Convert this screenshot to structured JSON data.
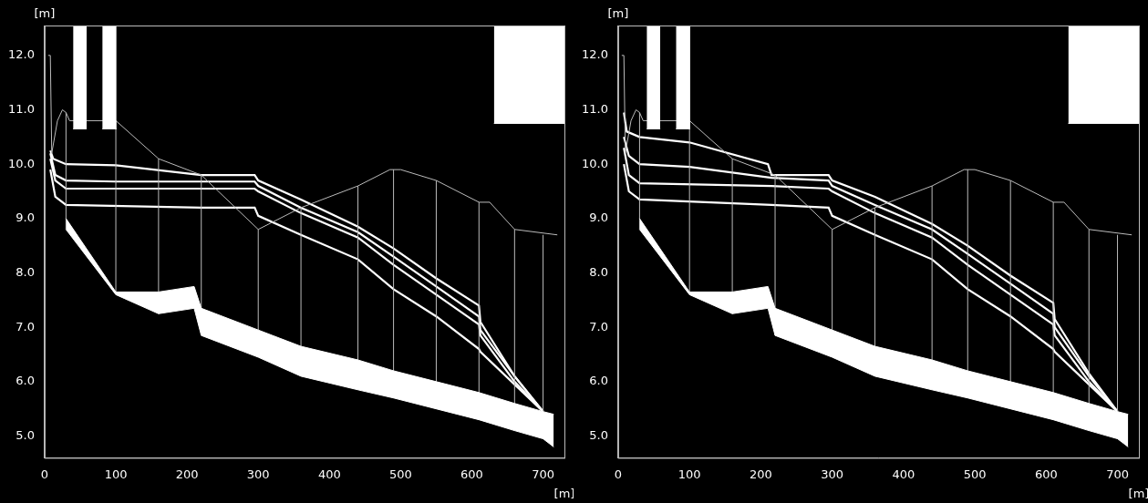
{
  "chart_data": [
    {
      "type": "line",
      "x_label": "[m]",
      "y_label": "[m]",
      "xlim": [
        0,
        730
      ],
      "ylim": [
        4.6,
        12.55
      ],
      "xticks": [
        0,
        100,
        200,
        300,
        400,
        500,
        600,
        700
      ],
      "yticks": [
        {
          "value": 5,
          "label": "5.0"
        },
        {
          "value": 6,
          "label": "6.0"
        },
        {
          "value": 7,
          "label": "7.0"
        },
        {
          "value": 8,
          "label": "8.0"
        },
        {
          "value": 9,
          "label": "9.0"
        },
        {
          "value": 10,
          "label": "10.0"
        },
        {
          "value": 11,
          "label": "11.0"
        },
        {
          "value": 12,
          "label": "12.0"
        }
      ],
      "grid": false,
      "series": [
        {
          "type": "band",
          "color": "#ffffff",
          "x": [
            30,
            100,
            160,
            210,
            220,
            300,
            360,
            440,
            490,
            550,
            610,
            660,
            700,
            715
          ],
          "values": [
            9.0,
            7.65,
            7.65,
            7.75,
            7.35,
            6.95,
            6.65,
            6.4,
            6.2,
            6.0,
            5.8,
            5.6,
            5.45,
            5.4
          ],
          "lower": [
            8.8,
            7.6,
            7.25,
            7.35,
            6.85,
            6.45,
            6.1,
            5.85,
            5.7,
            5.5,
            5.3,
            5.1,
            4.95,
            4.8
          ]
        },
        {
          "type": "band",
          "color": "#ffffff",
          "x": [
            40,
            59
          ],
          "values": [
            12.55,
            12.55
          ],
          "lower": [
            10.65,
            10.65
          ]
        },
        {
          "type": "band",
          "color": "#ffffff",
          "x": [
            81,
            101
          ],
          "values": [
            12.55,
            12.55
          ],
          "lower": [
            10.65,
            10.65
          ]
        },
        {
          "type": "band",
          "color": "#ffffff",
          "x": [
            631,
            730
          ],
          "values": [
            12.55,
            12.55
          ],
          "lower": [
            10.75,
            10.75
          ]
        },
        {
          "type": "line",
          "line_style": "thin",
          "color": "#bbbbbb",
          "x": [
            5,
            8,
            10,
            18,
            25,
            30,
            35,
            100,
            160,
            220,
            300,
            360,
            440,
            485,
            500,
            550,
            610,
            625,
            660,
            720
          ],
          "values": [
            12.0,
            12.0,
            10.2,
            10.8,
            11.0,
            10.95,
            10.8,
            10.8,
            10.1,
            9.8,
            8.8,
            9.2,
            9.6,
            9.9,
            9.9,
            9.7,
            9.3,
            9.3,
            8.8,
            8.7
          ]
        },
        {
          "type": "vline",
          "color": "#bbbbbb",
          "x": [
            30,
            100,
            160,
            220,
            300,
            360,
            440,
            490,
            550,
            610,
            660,
            700
          ],
          "values": [
            10.95,
            10.8,
            10.1,
            9.8,
            8.8,
            9.2,
            9.6,
            9.9,
            9.7,
            9.3,
            8.8,
            8.7
          ],
          "lower": [
            8.8,
            7.6,
            7.25,
            6.85,
            6.45,
            6.1,
            5.85,
            5.7,
            5.5,
            5.3,
            5.1,
            4.95
          ]
        },
        {
          "type": "line",
          "line_style": "thick",
          "color": "#ffffff",
          "x": [
            8,
            12,
            30,
            100,
            220,
            295,
            300,
            360,
            440,
            490,
            550,
            610,
            612,
            660,
            700
          ],
          "values": [
            10.25,
            10.1,
            10.0,
            9.98,
            9.8,
            9.8,
            9.7,
            9.35,
            8.85,
            8.45,
            7.9,
            7.4,
            7.1,
            6.1,
            5.45
          ]
        },
        {
          "type": "line",
          "line_style": "thick",
          "color": "#ffffff",
          "x": [
            8,
            15,
            30,
            100,
            220,
            295,
            300,
            360,
            440,
            490,
            550,
            610,
            612,
            660,
            700
          ],
          "values": [
            10.2,
            9.8,
            9.7,
            9.68,
            9.68,
            9.68,
            9.6,
            9.2,
            8.75,
            8.3,
            7.75,
            7.2,
            6.95,
            6.1,
            5.45
          ]
        },
        {
          "type": "line",
          "line_style": "thick",
          "color": "#ffffff",
          "x": [
            8,
            15,
            30,
            220,
            295,
            300,
            360,
            440,
            490,
            550,
            610,
            612,
            660,
            700
          ],
          "values": [
            10.1,
            9.7,
            9.55,
            9.55,
            9.55,
            9.5,
            9.1,
            8.65,
            8.15,
            7.6,
            7.05,
            6.85,
            6.0,
            5.45
          ]
        },
        {
          "type": "line",
          "line_style": "thick",
          "color": "#ffffff",
          "x": [
            8,
            15,
            30,
            220,
            295,
            300,
            360,
            440,
            490,
            550,
            610,
            612,
            660,
            700
          ],
          "values": [
            9.9,
            9.4,
            9.25,
            9.2,
            9.2,
            9.05,
            8.7,
            8.25,
            7.7,
            7.2,
            6.6,
            6.55,
            5.95,
            5.45
          ]
        }
      ]
    },
    {
      "type": "line",
      "x_label": "[m]",
      "y_label": "[m]",
      "xlim": [
        0,
        730
      ],
      "ylim": [
        4.6,
        12.55
      ],
      "xticks": [
        0,
        100,
        200,
        300,
        400,
        500,
        600,
        700
      ],
      "yticks": [
        {
          "value": 5,
          "label": "5.0"
        },
        {
          "value": 6,
          "label": "6.0"
        },
        {
          "value": 7,
          "label": "7.0"
        },
        {
          "value": 8,
          "label": "8.0"
        },
        {
          "value": 9,
          "label": "9.0"
        },
        {
          "value": 10,
          "label": "10.0"
        },
        {
          "value": 11,
          "label": "11.0"
        },
        {
          "value": 12,
          "label": "12.0"
        }
      ],
      "grid": false,
      "series": [
        {
          "type": "band",
          "color": "#ffffff",
          "x": [
            30,
            100,
            160,
            210,
            220,
            300,
            360,
            440,
            490,
            550,
            610,
            660,
            700,
            715
          ],
          "values": [
            9.0,
            7.65,
            7.65,
            7.75,
            7.35,
            6.95,
            6.65,
            6.4,
            6.2,
            6.0,
            5.8,
            5.6,
            5.45,
            5.4
          ],
          "lower": [
            8.8,
            7.6,
            7.25,
            7.35,
            6.85,
            6.45,
            6.1,
            5.85,
            5.7,
            5.5,
            5.3,
            5.1,
            4.95,
            4.8
          ]
        },
        {
          "type": "band",
          "color": "#ffffff",
          "x": [
            40,
            59
          ],
          "values": [
            12.55,
            12.55
          ],
          "lower": [
            10.65,
            10.65
          ]
        },
        {
          "type": "band",
          "color": "#ffffff",
          "x": [
            81,
            101
          ],
          "values": [
            12.55,
            12.55
          ],
          "lower": [
            10.65,
            10.65
          ]
        },
        {
          "type": "band",
          "color": "#ffffff",
          "x": [
            631,
            730
          ],
          "values": [
            12.55,
            12.55
          ],
          "lower": [
            10.75,
            10.75
          ]
        },
        {
          "type": "line",
          "line_style": "thin",
          "color": "#bbbbbb",
          "x": [
            5,
            8,
            10,
            18,
            25,
            30,
            35,
            100,
            160,
            220,
            300,
            360,
            440,
            485,
            500,
            550,
            610,
            625,
            660,
            720
          ],
          "values": [
            12.0,
            12.0,
            10.2,
            10.8,
            11.0,
            10.95,
            10.8,
            10.8,
            10.1,
            9.8,
            8.8,
            9.2,
            9.6,
            9.9,
            9.9,
            9.7,
            9.3,
            9.3,
            8.8,
            8.7
          ]
        },
        {
          "type": "vline",
          "color": "#bbbbbb",
          "x": [
            30,
            100,
            160,
            220,
            300,
            360,
            440,
            490,
            550,
            610,
            660,
            700
          ],
          "values": [
            10.95,
            10.8,
            10.1,
            9.8,
            8.8,
            9.2,
            9.6,
            9.9,
            9.7,
            9.3,
            8.8,
            8.7
          ],
          "lower": [
            8.8,
            7.6,
            7.25,
            6.85,
            6.45,
            6.1,
            5.85,
            5.7,
            5.5,
            5.3,
            5.1,
            4.95
          ]
        },
        {
          "type": "line",
          "line_style": "thick",
          "color": "#ffffff",
          "x": [
            8,
            12,
            30,
            100,
            210,
            215,
            295,
            300,
            360,
            440,
            490,
            550,
            610,
            612,
            660,
            700
          ],
          "values": [
            10.95,
            10.6,
            10.5,
            10.4,
            10.0,
            9.8,
            9.8,
            9.7,
            9.4,
            8.9,
            8.5,
            7.95,
            7.45,
            7.15,
            6.15,
            5.45
          ]
        },
        {
          "type": "line",
          "line_style": "thick",
          "color": "#ffffff",
          "x": [
            8,
            15,
            30,
            100,
            215,
            295,
            300,
            360,
            440,
            490,
            550,
            610,
            612,
            660,
            700
          ],
          "values": [
            10.5,
            10.15,
            10.0,
            9.95,
            9.75,
            9.7,
            9.6,
            9.25,
            8.8,
            8.35,
            7.8,
            7.25,
            7.0,
            6.1,
            5.45
          ]
        },
        {
          "type": "line",
          "line_style": "thick",
          "color": "#ffffff",
          "x": [
            8,
            15,
            30,
            215,
            295,
            300,
            360,
            440,
            490,
            550,
            610,
            612,
            660,
            700
          ],
          "values": [
            10.3,
            9.8,
            9.65,
            9.6,
            9.55,
            9.5,
            9.1,
            8.65,
            8.15,
            7.6,
            7.05,
            6.85,
            6.0,
            5.45
          ]
        },
        {
          "type": "line",
          "line_style": "thick",
          "color": "#ffffff",
          "x": [
            8,
            15,
            30,
            215,
            295,
            300,
            360,
            440,
            490,
            550,
            610,
            612,
            660,
            700
          ],
          "values": [
            10.0,
            9.5,
            9.35,
            9.25,
            9.2,
            9.05,
            8.7,
            8.25,
            7.7,
            7.2,
            6.6,
            6.55,
            5.95,
            5.45
          ]
        }
      ]
    }
  ]
}
